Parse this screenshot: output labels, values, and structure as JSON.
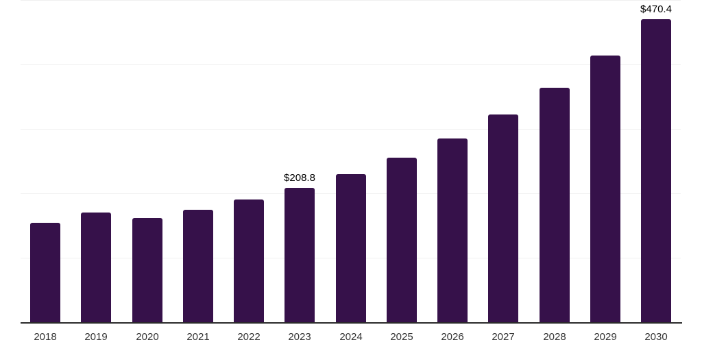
{
  "chart_data": {
    "type": "bar",
    "title": "",
    "xlabel": "",
    "ylabel": "",
    "categories": [
      "2018",
      "2019",
      "2020",
      "2021",
      "2022",
      "2023",
      "2024",
      "2025",
      "2026",
      "2027",
      "2028",
      "2029",
      "2030"
    ],
    "values": [
      154.1,
      170.6,
      161.8,
      174.8,
      190.4,
      208.8,
      230.0,
      255.5,
      285.2,
      322.0,
      363.4,
      413.6,
      470.4
    ],
    "ylim": [
      0,
      500
    ],
    "gridline_values": [
      100,
      200,
      300,
      400,
      500
    ],
    "grid": "horizontal-only",
    "legend": "none",
    "y_axis_labels_visible": false,
    "data_labels": [
      {
        "category": "2023",
        "text": "$208.8"
      },
      {
        "category": "2030",
        "text": "$470.4"
      }
    ],
    "unit_prefix": "$"
  },
  "colors": {
    "bar_fill": "#36114A",
    "gridline": "#f0f0f0",
    "axis_line": "#2b2b2b",
    "tick_label": "#333333",
    "data_label": "#000000",
    "background": "#ffffff"
  }
}
